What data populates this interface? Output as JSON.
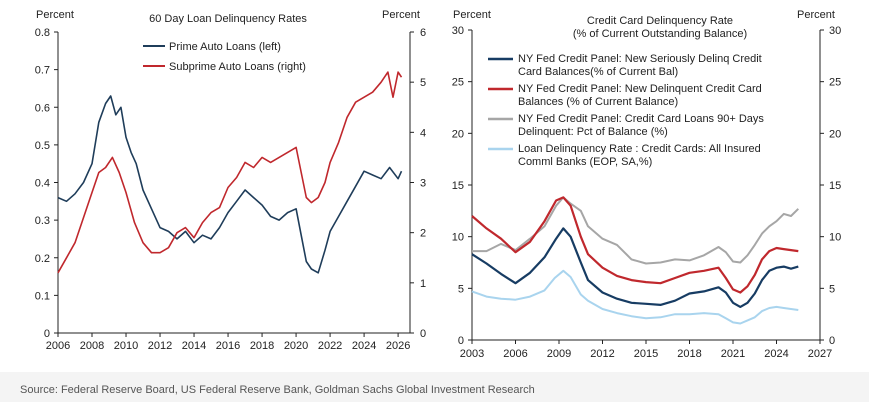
{
  "source": "Source: Federal Reserve Board, US Federal Reserve Bank, Goldman Sachs Global Investment Research",
  "chart_data": [
    {
      "type": "line",
      "title": "60 Day Loan Delinquency Rates",
      "left_axis_label": "Percent",
      "right_axis_label": "Percent",
      "xlim": [
        2006,
        2026.7
      ],
      "x_ticks": [
        "2006",
        "2008",
        "2010",
        "2012",
        "2014",
        "2016",
        "2018",
        "2020",
        "2022",
        "2024",
        "2026"
      ],
      "ylim_left": [
        0,
        0.8
      ],
      "y_ticks_left": [
        "0",
        "0.1",
        "0.2",
        "0.3",
        "0.4",
        "0.5",
        "0.6",
        "0.7",
        "0.8"
      ],
      "ylim_right": [
        0,
        6
      ],
      "y_ticks_right": [
        "0",
        "1",
        "2",
        "3",
        "4",
        "5",
        "6"
      ],
      "legend_position": "top-center",
      "series": [
        {
          "name": "Prime Auto Loans (left)",
          "axis": "left",
          "color": "#1f3d5a",
          "points": [
            [
              2006.0,
              0.36
            ],
            [
              2006.5,
              0.35
            ],
            [
              2007.0,
              0.37
            ],
            [
              2007.5,
              0.4
            ],
            [
              2008.0,
              0.45
            ],
            [
              2008.4,
              0.56
            ],
            [
              2008.8,
              0.61
            ],
            [
              2009.1,
              0.63
            ],
            [
              2009.4,
              0.58
            ],
            [
              2009.7,
              0.6
            ],
            [
              2010.0,
              0.52
            ],
            [
              2010.3,
              0.48
            ],
            [
              2010.6,
              0.45
            ],
            [
              2011.0,
              0.38
            ],
            [
              2011.5,
              0.33
            ],
            [
              2012.0,
              0.28
            ],
            [
              2012.5,
              0.27
            ],
            [
              2013.0,
              0.25
            ],
            [
              2013.5,
              0.27
            ],
            [
              2014.0,
              0.24
            ],
            [
              2014.5,
              0.26
            ],
            [
              2015.0,
              0.25
            ],
            [
              2015.5,
              0.28
            ],
            [
              2016.0,
              0.32
            ],
            [
              2016.5,
              0.35
            ],
            [
              2017.0,
              0.38
            ],
            [
              2017.5,
              0.36
            ],
            [
              2018.0,
              0.34
            ],
            [
              2018.5,
              0.31
            ],
            [
              2019.0,
              0.3
            ],
            [
              2019.5,
              0.32
            ],
            [
              2020.0,
              0.33
            ],
            [
              2020.3,
              0.26
            ],
            [
              2020.6,
              0.19
            ],
            [
              2020.9,
              0.17
            ],
            [
              2021.3,
              0.16
            ],
            [
              2021.7,
              0.22
            ],
            [
              2022.0,
              0.27
            ],
            [
              2022.5,
              0.31
            ],
            [
              2023.0,
              0.35
            ],
            [
              2023.5,
              0.39
            ],
            [
              2024.0,
              0.43
            ],
            [
              2024.5,
              0.42
            ],
            [
              2025.0,
              0.41
            ],
            [
              2025.5,
              0.44
            ],
            [
              2026.0,
              0.41
            ],
            [
              2026.2,
              0.43
            ]
          ]
        },
        {
          "name": "Subprime Auto Loans (right)",
          "axis": "right",
          "color": "#c0282d",
          "points": [
            [
              2006.0,
              1.2
            ],
            [
              2006.5,
              1.5
            ],
            [
              2007.0,
              1.8
            ],
            [
              2007.5,
              2.3
            ],
            [
              2008.0,
              2.8
            ],
            [
              2008.4,
              3.2
            ],
            [
              2008.8,
              3.3
            ],
            [
              2009.2,
              3.5
            ],
            [
              2009.6,
              3.2
            ],
            [
              2010.0,
              2.8
            ],
            [
              2010.5,
              2.2
            ],
            [
              2011.0,
              1.8
            ],
            [
              2011.5,
              1.6
            ],
            [
              2012.0,
              1.6
            ],
            [
              2012.5,
              1.7
            ],
            [
              2013.0,
              2.0
            ],
            [
              2013.5,
              2.1
            ],
            [
              2014.0,
              1.9
            ],
            [
              2014.5,
              2.2
            ],
            [
              2015.0,
              2.4
            ],
            [
              2015.5,
              2.5
            ],
            [
              2016.0,
              2.9
            ],
            [
              2016.5,
              3.1
            ],
            [
              2017.0,
              3.4
            ],
            [
              2017.5,
              3.3
            ],
            [
              2018.0,
              3.5
            ],
            [
              2018.5,
              3.4
            ],
            [
              2019.0,
              3.5
            ],
            [
              2019.5,
              3.6
            ],
            [
              2020.0,
              3.7
            ],
            [
              2020.3,
              3.2
            ],
            [
              2020.6,
              2.7
            ],
            [
              2020.9,
              2.6
            ],
            [
              2021.3,
              2.7
            ],
            [
              2021.7,
              3.0
            ],
            [
              2022.0,
              3.4
            ],
            [
              2022.5,
              3.8
            ],
            [
              2023.0,
              4.3
            ],
            [
              2023.5,
              4.6
            ],
            [
              2024.0,
              4.7
            ],
            [
              2024.5,
              4.8
            ],
            [
              2025.0,
              5.0
            ],
            [
              2025.4,
              5.2
            ],
            [
              2025.7,
              4.7
            ],
            [
              2026.0,
              5.2
            ],
            [
              2026.2,
              5.1
            ]
          ]
        }
      ]
    },
    {
      "type": "line",
      "title": "Credit Card Delinquency Rate",
      "subtitle": "(% of Current Outstanding Balance)",
      "left_axis_label": "Percent",
      "right_axis_label": "Percent",
      "xlim": [
        2003,
        2027
      ],
      "x_ticks": [
        "2003",
        "2006",
        "2009",
        "2012",
        "2015",
        "2018",
        "2021",
        "2024",
        "2027"
      ],
      "ylim": [
        0,
        30
      ],
      "y_ticks": [
        "0",
        "5",
        "10",
        "15",
        "20",
        "25",
        "30"
      ],
      "legend_position": "top-left",
      "series": [
        {
          "name": "NY Fed Credit Panel: New Seriously Delinq Credit Card Balances(% of Current Bal)",
          "color": "#173c63",
          "points": [
            [
              2003.0,
              8.3
            ],
            [
              2004.0,
              7.4
            ],
            [
              2005.0,
              6.4
            ],
            [
              2006.0,
              5.5
            ],
            [
              2007.0,
              6.5
            ],
            [
              2008.0,
              8.0
            ],
            [
              2008.8,
              9.8
            ],
            [
              2009.3,
              10.8
            ],
            [
              2009.8,
              10.0
            ],
            [
              2010.5,
              7.5
            ],
            [
              2011.0,
              5.8
            ],
            [
              2012.0,
              4.6
            ],
            [
              2013.0,
              4.0
            ],
            [
              2014.0,
              3.6
            ],
            [
              2015.0,
              3.5
            ],
            [
              2016.0,
              3.4
            ],
            [
              2017.0,
              3.8
            ],
            [
              2018.0,
              4.5
            ],
            [
              2019.0,
              4.7
            ],
            [
              2020.0,
              5.1
            ],
            [
              2020.5,
              4.6
            ],
            [
              2021.0,
              3.6
            ],
            [
              2021.5,
              3.2
            ],
            [
              2022.0,
              3.6
            ],
            [
              2022.5,
              4.5
            ],
            [
              2023.0,
              5.8
            ],
            [
              2023.5,
              6.7
            ],
            [
              2024.0,
              7.0
            ],
            [
              2024.5,
              7.1
            ],
            [
              2025.0,
              6.9
            ],
            [
              2025.5,
              7.1
            ]
          ]
        },
        {
          "name": "NY Fed Credit Panel: New Delinquent Credit Card Balances (% of Current Balance)",
          "color": "#c0282d",
          "points": [
            [
              2003.0,
              12.0
            ],
            [
              2004.0,
              10.8
            ],
            [
              2005.0,
              9.8
            ],
            [
              2006.0,
              8.5
            ],
            [
              2007.0,
              9.5
            ],
            [
              2008.0,
              11.5
            ],
            [
              2008.8,
              13.5
            ],
            [
              2009.3,
              13.8
            ],
            [
              2009.8,
              13.0
            ],
            [
              2010.5,
              10.0
            ],
            [
              2011.0,
              8.3
            ],
            [
              2012.0,
              7.0
            ],
            [
              2013.0,
              6.2
            ],
            [
              2014.0,
              5.8
            ],
            [
              2015.0,
              5.6
            ],
            [
              2016.0,
              5.5
            ],
            [
              2017.0,
              6.0
            ],
            [
              2018.0,
              6.5
            ],
            [
              2019.0,
              6.7
            ],
            [
              2020.0,
              7.0
            ],
            [
              2020.5,
              6.0
            ],
            [
              2021.0,
              4.9
            ],
            [
              2021.5,
              4.6
            ],
            [
              2022.0,
              5.2
            ],
            [
              2022.5,
              6.3
            ],
            [
              2023.0,
              7.8
            ],
            [
              2023.5,
              8.6
            ],
            [
              2024.0,
              8.9
            ],
            [
              2024.5,
              8.8
            ],
            [
              2025.0,
              8.7
            ],
            [
              2025.5,
              8.6
            ]
          ]
        },
        {
          "name": "NY Fed Credit Panel: Credit Card Loans 90+ Days Delinquent: Pct of Balance (%)",
          "color": "#a6a6a6",
          "points": [
            [
              2003.0,
              8.6
            ],
            [
              2004.0,
              8.6
            ],
            [
              2005.0,
              9.3
            ],
            [
              2006.0,
              8.7
            ],
            [
              2007.0,
              9.8
            ],
            [
              2008.0,
              11.0
            ],
            [
              2008.8,
              13.0
            ],
            [
              2009.3,
              13.8
            ],
            [
              2009.8,
              13.2
            ],
            [
              2010.5,
              12.5
            ],
            [
              2011.0,
              11.0
            ],
            [
              2012.0,
              9.8
            ],
            [
              2013.0,
              9.2
            ],
            [
              2014.0,
              7.8
            ],
            [
              2015.0,
              7.4
            ],
            [
              2016.0,
              7.5
            ],
            [
              2017.0,
              7.8
            ],
            [
              2018.0,
              7.7
            ],
            [
              2019.0,
              8.2
            ],
            [
              2020.0,
              9.0
            ],
            [
              2020.5,
              8.5
            ],
            [
              2021.0,
              7.6
            ],
            [
              2021.5,
              7.5
            ],
            [
              2022.0,
              8.2
            ],
            [
              2022.5,
              9.2
            ],
            [
              2023.0,
              10.3
            ],
            [
              2023.5,
              11.0
            ],
            [
              2024.0,
              11.5
            ],
            [
              2024.5,
              12.2
            ],
            [
              2025.0,
              12.0
            ],
            [
              2025.5,
              12.7
            ]
          ]
        },
        {
          "name": "Loan Delinquency Rate : Credit Cards: All Insured Comml Banks (EOP, SA,%)",
          "color": "#a9d4ee",
          "points": [
            [
              2003.0,
              4.7
            ],
            [
              2004.0,
              4.2
            ],
            [
              2005.0,
              4.0
            ],
            [
              2006.0,
              3.9
            ],
            [
              2007.0,
              4.2
            ],
            [
              2008.0,
              4.8
            ],
            [
              2008.7,
              6.0
            ],
            [
              2009.3,
              6.7
            ],
            [
              2009.8,
              6.1
            ],
            [
              2010.5,
              4.4
            ],
            [
              2011.0,
              3.8
            ],
            [
              2012.0,
              3.0
            ],
            [
              2013.0,
              2.6
            ],
            [
              2014.0,
              2.3
            ],
            [
              2015.0,
              2.1
            ],
            [
              2016.0,
              2.2
            ],
            [
              2017.0,
              2.5
            ],
            [
              2018.0,
              2.5
            ],
            [
              2019.0,
              2.6
            ],
            [
              2020.0,
              2.5
            ],
            [
              2020.5,
              2.1
            ],
            [
              2021.0,
              1.7
            ],
            [
              2021.5,
              1.6
            ],
            [
              2022.0,
              1.9
            ],
            [
              2022.5,
              2.2
            ],
            [
              2023.0,
              2.8
            ],
            [
              2023.5,
              3.1
            ],
            [
              2024.0,
              3.2
            ],
            [
              2024.5,
              3.1
            ],
            [
              2025.0,
              3.0
            ],
            [
              2025.5,
              2.9
            ]
          ]
        }
      ]
    }
  ]
}
